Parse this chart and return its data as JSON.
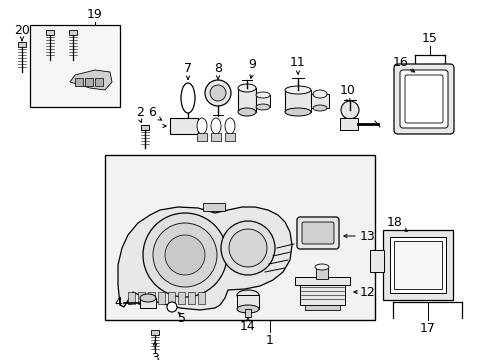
{
  "bg_color": "#ffffff",
  "line_color": "#000000",
  "gray_fill": "#e8e8e8",
  "light_gray": "#f0f0f0",
  "mid_gray": "#d0d0d0",
  "dark_gray": "#b0b0b0"
}
